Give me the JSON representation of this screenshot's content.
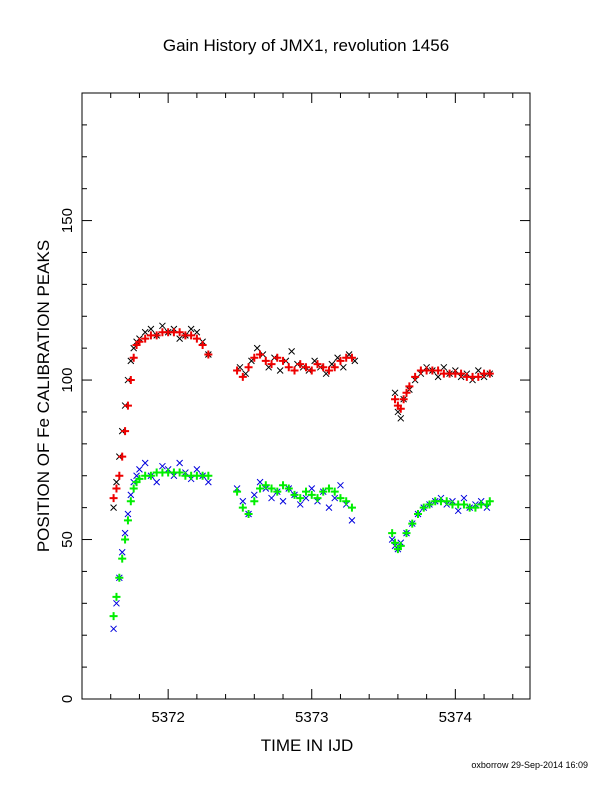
{
  "title": "Gain History of JMX1, revolution 1456",
  "credit": "oxborrow 29-Sep-2014 16:09",
  "chart_data": {
    "type": "scatter",
    "title": "Gain History of JMX1, revolution 1456",
    "xlabel": "TIME IN IJD",
    "ylabel": "POSITION OF Fe CALIBRATION PEAKS",
    "xlim": [
      5371.4,
      5374.52
    ],
    "ylim": [
      0,
      190
    ],
    "xticks": [
      5372,
      5373,
      5374
    ],
    "yticks": [
      0,
      50,
      100,
      150
    ],
    "grid": false,
    "legend": "none",
    "series": [
      {
        "color": "#000000",
        "marker": "x",
        "x": [
          5371.62,
          5371.64,
          5371.66,
          5371.68,
          5371.7,
          5371.72,
          5371.74,
          5371.76,
          5371.78,
          5371.8,
          5371.84,
          5371.88,
          5371.92,
          5371.96,
          5372.0,
          5372.04,
          5372.08,
          5372.12,
          5372.16,
          5372.2,
          5372.24,
          5372.28,
          5372.5,
          5372.54,
          5372.58,
          5372.62,
          5372.66,
          5372.7,
          5372.74,
          5372.78,
          5372.82,
          5372.86,
          5372.9,
          5372.94,
          5372.98,
          5373.02,
          5373.06,
          5373.1,
          5373.14,
          5373.18,
          5373.22,
          5373.26,
          5373.3,
          5373.58,
          5373.6,
          5373.62,
          5373.64,
          5373.68,
          5373.72,
          5373.76,
          5373.8,
          5373.84,
          5373.88,
          5373.92,
          5373.96,
          5374.0,
          5374.04,
          5374.08,
          5374.12,
          5374.16,
          5374.2,
          5374.24
        ],
        "y": [
          60,
          68,
          76,
          84,
          92,
          100,
          106,
          110,
          112,
          113,
          115,
          116,
          114,
          117,
          115,
          116,
          113,
          114,
          116,
          115,
          112,
          108,
          104,
          102,
          106,
          110,
          108,
          104,
          107,
          103,
          106,
          109,
          105,
          104,
          103,
          106,
          104,
          102,
          105,
          107,
          104,
          108,
          106,
          96,
          90,
          88,
          94,
          97,
          100,
          102,
          104,
          103,
          101,
          104,
          102,
          103,
          101,
          102,
          100,
          103,
          101,
          102
        ]
      },
      {
        "color": "#ee0000",
        "marker": "+",
        "x": [
          5371.62,
          5371.64,
          5371.66,
          5371.68,
          5371.7,
          5371.72,
          5371.74,
          5371.76,
          5371.78,
          5371.8,
          5371.84,
          5371.88,
          5371.92,
          5371.96,
          5372.0,
          5372.04,
          5372.08,
          5372.12,
          5372.16,
          5372.2,
          5372.24,
          5372.28,
          5372.48,
          5372.52,
          5372.56,
          5372.6,
          5372.64,
          5372.68,
          5372.72,
          5372.76,
          5372.8,
          5372.84,
          5372.88,
          5372.92,
          5372.96,
          5373.0,
          5373.04,
          5373.08,
          5373.12,
          5373.16,
          5373.2,
          5373.24,
          5373.28,
          5373.58,
          5373.6,
          5373.62,
          5373.64,
          5373.66,
          5373.68,
          5373.72,
          5373.76,
          5373.8,
          5373.84,
          5373.88,
          5373.92,
          5373.96,
          5374.0,
          5374.04,
          5374.08,
          5374.12,
          5374.16,
          5374.2,
          5374.24
        ],
        "y": [
          63,
          66,
          70,
          76,
          84,
          92,
          100,
          107,
          111,
          112,
          113,
          114,
          114,
          115,
          115,
          115,
          115,
          114,
          114,
          113,
          111,
          108,
          103,
          101,
          104,
          107,
          108,
          106,
          105,
          107,
          106,
          104,
          103,
          105,
          104,
          103,
          105,
          104,
          103,
          104,
          106,
          107,
          107,
          94,
          92,
          91,
          94,
          96,
          98,
          101,
          103,
          103,
          103,
          103,
          102,
          102,
          102,
          102,
          101,
          101,
          101,
          102,
          102
        ]
      },
      {
        "color": "#0000dd",
        "marker": "x",
        "x": [
          5371.62,
          5371.64,
          5371.66,
          5371.68,
          5371.7,
          5371.72,
          5371.74,
          5371.76,
          5371.78,
          5371.8,
          5371.84,
          5371.88,
          5371.92,
          5371.96,
          5372.0,
          5372.04,
          5372.08,
          5372.12,
          5372.16,
          5372.2,
          5372.24,
          5372.28,
          5372.48,
          5372.52,
          5372.56,
          5372.6,
          5372.64,
          5372.68,
          5372.72,
          5372.76,
          5372.8,
          5372.84,
          5372.88,
          5372.92,
          5372.96,
          5373.0,
          5373.04,
          5373.08,
          5373.12,
          5373.16,
          5373.2,
          5373.24,
          5373.28,
          5373.56,
          5373.58,
          5373.6,
          5373.62,
          5373.66,
          5373.7,
          5373.74,
          5373.78,
          5373.82,
          5373.86,
          5373.9,
          5373.94,
          5373.98,
          5374.02,
          5374.06,
          5374.1,
          5374.14,
          5374.18,
          5374.22
        ],
        "y": [
          22,
          30,
          38,
          46,
          52,
          58,
          64,
          68,
          70,
          72,
          74,
          70,
          68,
          73,
          72,
          70,
          74,
          71,
          69,
          72,
          70,
          68,
          66,
          62,
          58,
          64,
          68,
          66,
          63,
          65,
          62,
          66,
          64,
          61,
          63,
          66,
          62,
          65,
          60,
          63,
          67,
          61,
          56,
          50,
          48,
          47,
          49,
          52,
          55,
          58,
          60,
          61,
          62,
          63,
          61,
          62,
          59,
          63,
          60,
          61,
          62,
          60
        ]
      },
      {
        "color": "#00ee00",
        "marker": "+",
        "x": [
          5371.62,
          5371.64,
          5371.66,
          5371.68,
          5371.7,
          5371.72,
          5371.74,
          5371.76,
          5371.78,
          5371.8,
          5371.84,
          5371.88,
          5371.92,
          5371.96,
          5372.0,
          5372.04,
          5372.08,
          5372.12,
          5372.16,
          5372.2,
          5372.24,
          5372.28,
          5372.48,
          5372.52,
          5372.56,
          5372.6,
          5372.64,
          5372.68,
          5372.72,
          5372.76,
          5372.8,
          5372.84,
          5372.88,
          5372.92,
          5372.96,
          5373.0,
          5373.04,
          5373.08,
          5373.12,
          5373.16,
          5373.2,
          5373.24,
          5373.28,
          5373.56,
          5373.58,
          5373.6,
          5373.62,
          5373.66,
          5373.7,
          5373.74,
          5373.78,
          5373.82,
          5373.86,
          5373.9,
          5373.94,
          5373.98,
          5374.02,
          5374.06,
          5374.1,
          5374.14,
          5374.18,
          5374.22,
          5374.24
        ],
        "y": [
          26,
          32,
          38,
          44,
          50,
          56,
          62,
          66,
          68,
          69,
          70,
          70,
          71,
          71,
          71,
          71,
          71,
          70,
          70,
          70,
          70,
          70,
          65,
          60,
          58,
          62,
          66,
          67,
          66,
          65,
          67,
          66,
          64,
          63,
          65,
          64,
          63,
          65,
          66,
          65,
          63,
          62,
          60,
          52,
          49,
          47,
          48,
          52,
          55,
          58,
          60,
          61,
          62,
          62,
          62,
          61,
          61,
          61,
          60,
          60,
          61,
          61,
          62
        ]
      }
    ]
  }
}
